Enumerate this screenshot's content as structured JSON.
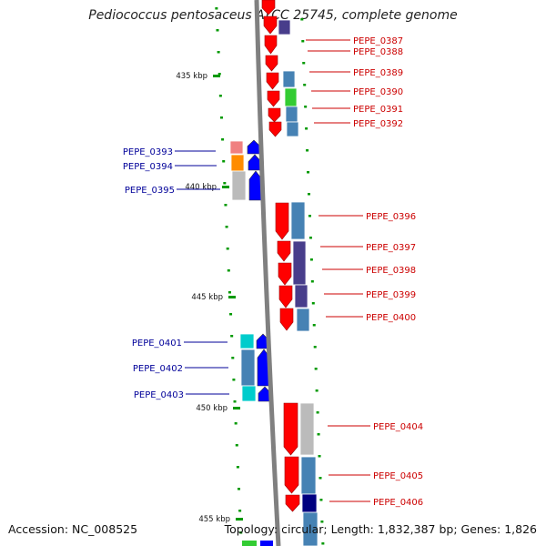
{
  "title": "Pediococcus pentosaceus ATCC 25745, complete genome",
  "footer": {
    "accession": "Accession: NC_008525",
    "topology": "Topology: circular; Length: 1,832,387 bp; Genes: 1,826"
  },
  "ruler": [
    "435 kbp",
    "440 kbp",
    "445 kbp",
    "450 kbp",
    "455 kbp"
  ],
  "colors": {
    "forward_cds": "#ff0000",
    "reverse_cds": "#0000ff",
    "forward_label": "#cc0000",
    "reverse_label": "#000099",
    "backbone": "#808080",
    "tick": "#009900",
    "cog_blue": "#4682b4",
    "cog_purple": "#483d8b",
    "cog_green": "#33cc33",
    "cog_gray": "#bbbbbb",
    "cog_orange": "#ff8c00",
    "cog_pink": "#f08080",
    "cog_cyan": "#00cccc",
    "cog_navy": "#000080"
  },
  "genes_right": [
    "PEPE_0387",
    "PEPE_0388",
    "PEPE_0389",
    "PEPE_0390",
    "PEPE_0391",
    "PEPE_0392",
    "PEPE_0396",
    "PEPE_0397",
    "PEPE_0398",
    "PEPE_0399",
    "PEPE_0400",
    "PEPE_0404",
    "PEPE_0405",
    "PEPE_0406"
  ],
  "genes_left": [
    "PEPE_0393",
    "PEPE_0394",
    "PEPE_0395",
    "PEPE_0401",
    "PEPE_0402",
    "PEPE_0403"
  ]
}
